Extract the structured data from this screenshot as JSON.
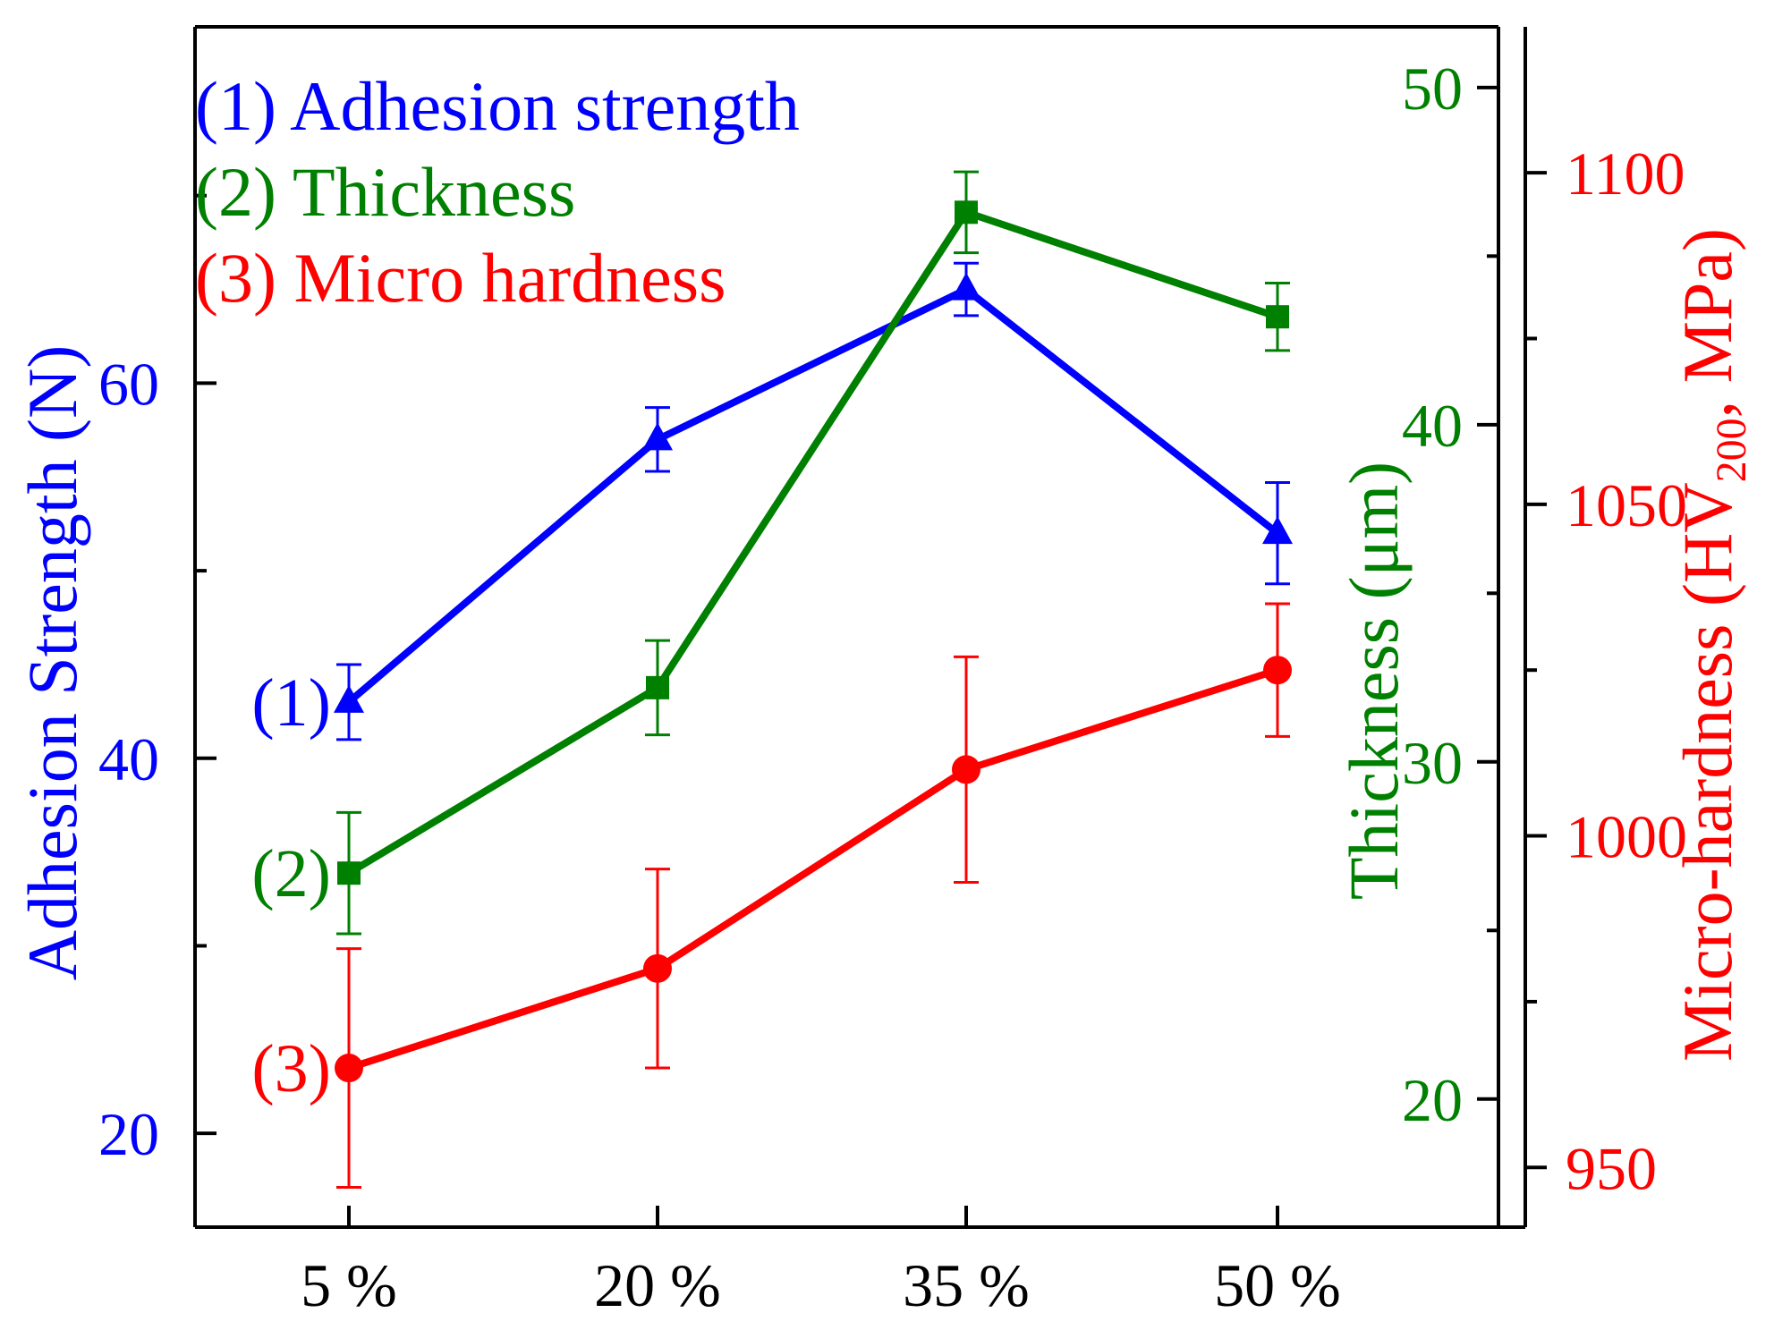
{
  "chart_data": {
    "type": "line",
    "categories": [
      "5 %",
      "20 %",
      "35 %",
      "50 %"
    ],
    "series": [
      {
        "name": "Adhesion strength",
        "legend": "(1) Adhesion strength",
        "curve_label": "(1)",
        "axis": "left",
        "color": "#0000ff",
        "marker": "triangle",
        "values": [
          43.0,
          57.0,
          65.0,
          52.0
        ],
        "errors": [
          2.0,
          1.7,
          1.4,
          2.7
        ]
      },
      {
        "name": "Thickness",
        "legend": "(2) Thickness",
        "curve_label": "(2)",
        "axis": "right1",
        "color": "#008000",
        "marker": "square",
        "values": [
          26.7,
          32.2,
          46.3,
          43.2
        ],
        "errors": [
          1.8,
          1.4,
          1.2,
          1.0
        ]
      },
      {
        "name": "Micro hardness",
        "legend": "(3) Micro hardness",
        "curve_label": "(3)",
        "axis": "right2",
        "color": "#ff0000",
        "marker": "circle",
        "values": [
          965,
          980,
          1010,
          1025
        ],
        "errors": [
          18,
          15,
          17,
          10
        ]
      }
    ],
    "axes": {
      "left": {
        "title": "Adhesion Strength (N)",
        "min": 15,
        "max": 79,
        "ticks": [
          20,
          40,
          60
        ],
        "minor_ticks": [
          30,
          50,
          70
        ],
        "color": "#0000ff"
      },
      "right1": {
        "title": "Thickness  (μm)",
        "min": 16.2,
        "max": 51.8,
        "ticks": [
          20,
          30,
          40,
          50
        ],
        "minor_ticks": [
          25,
          35,
          45
        ],
        "color": "#008000"
      },
      "right2": {
        "title_main": "Micro-hardness (HV",
        "title_sub": "200",
        "title_end": ", MPa)",
        "min": 941,
        "max": 1122,
        "ticks": [
          950,
          1000,
          1050,
          1100
        ],
        "minor_ticks": [
          975,
          1025,
          1075
        ],
        "color": "#ff0000"
      }
    },
    "xlabel": "",
    "grid": false,
    "legend_position": "top-left"
  }
}
